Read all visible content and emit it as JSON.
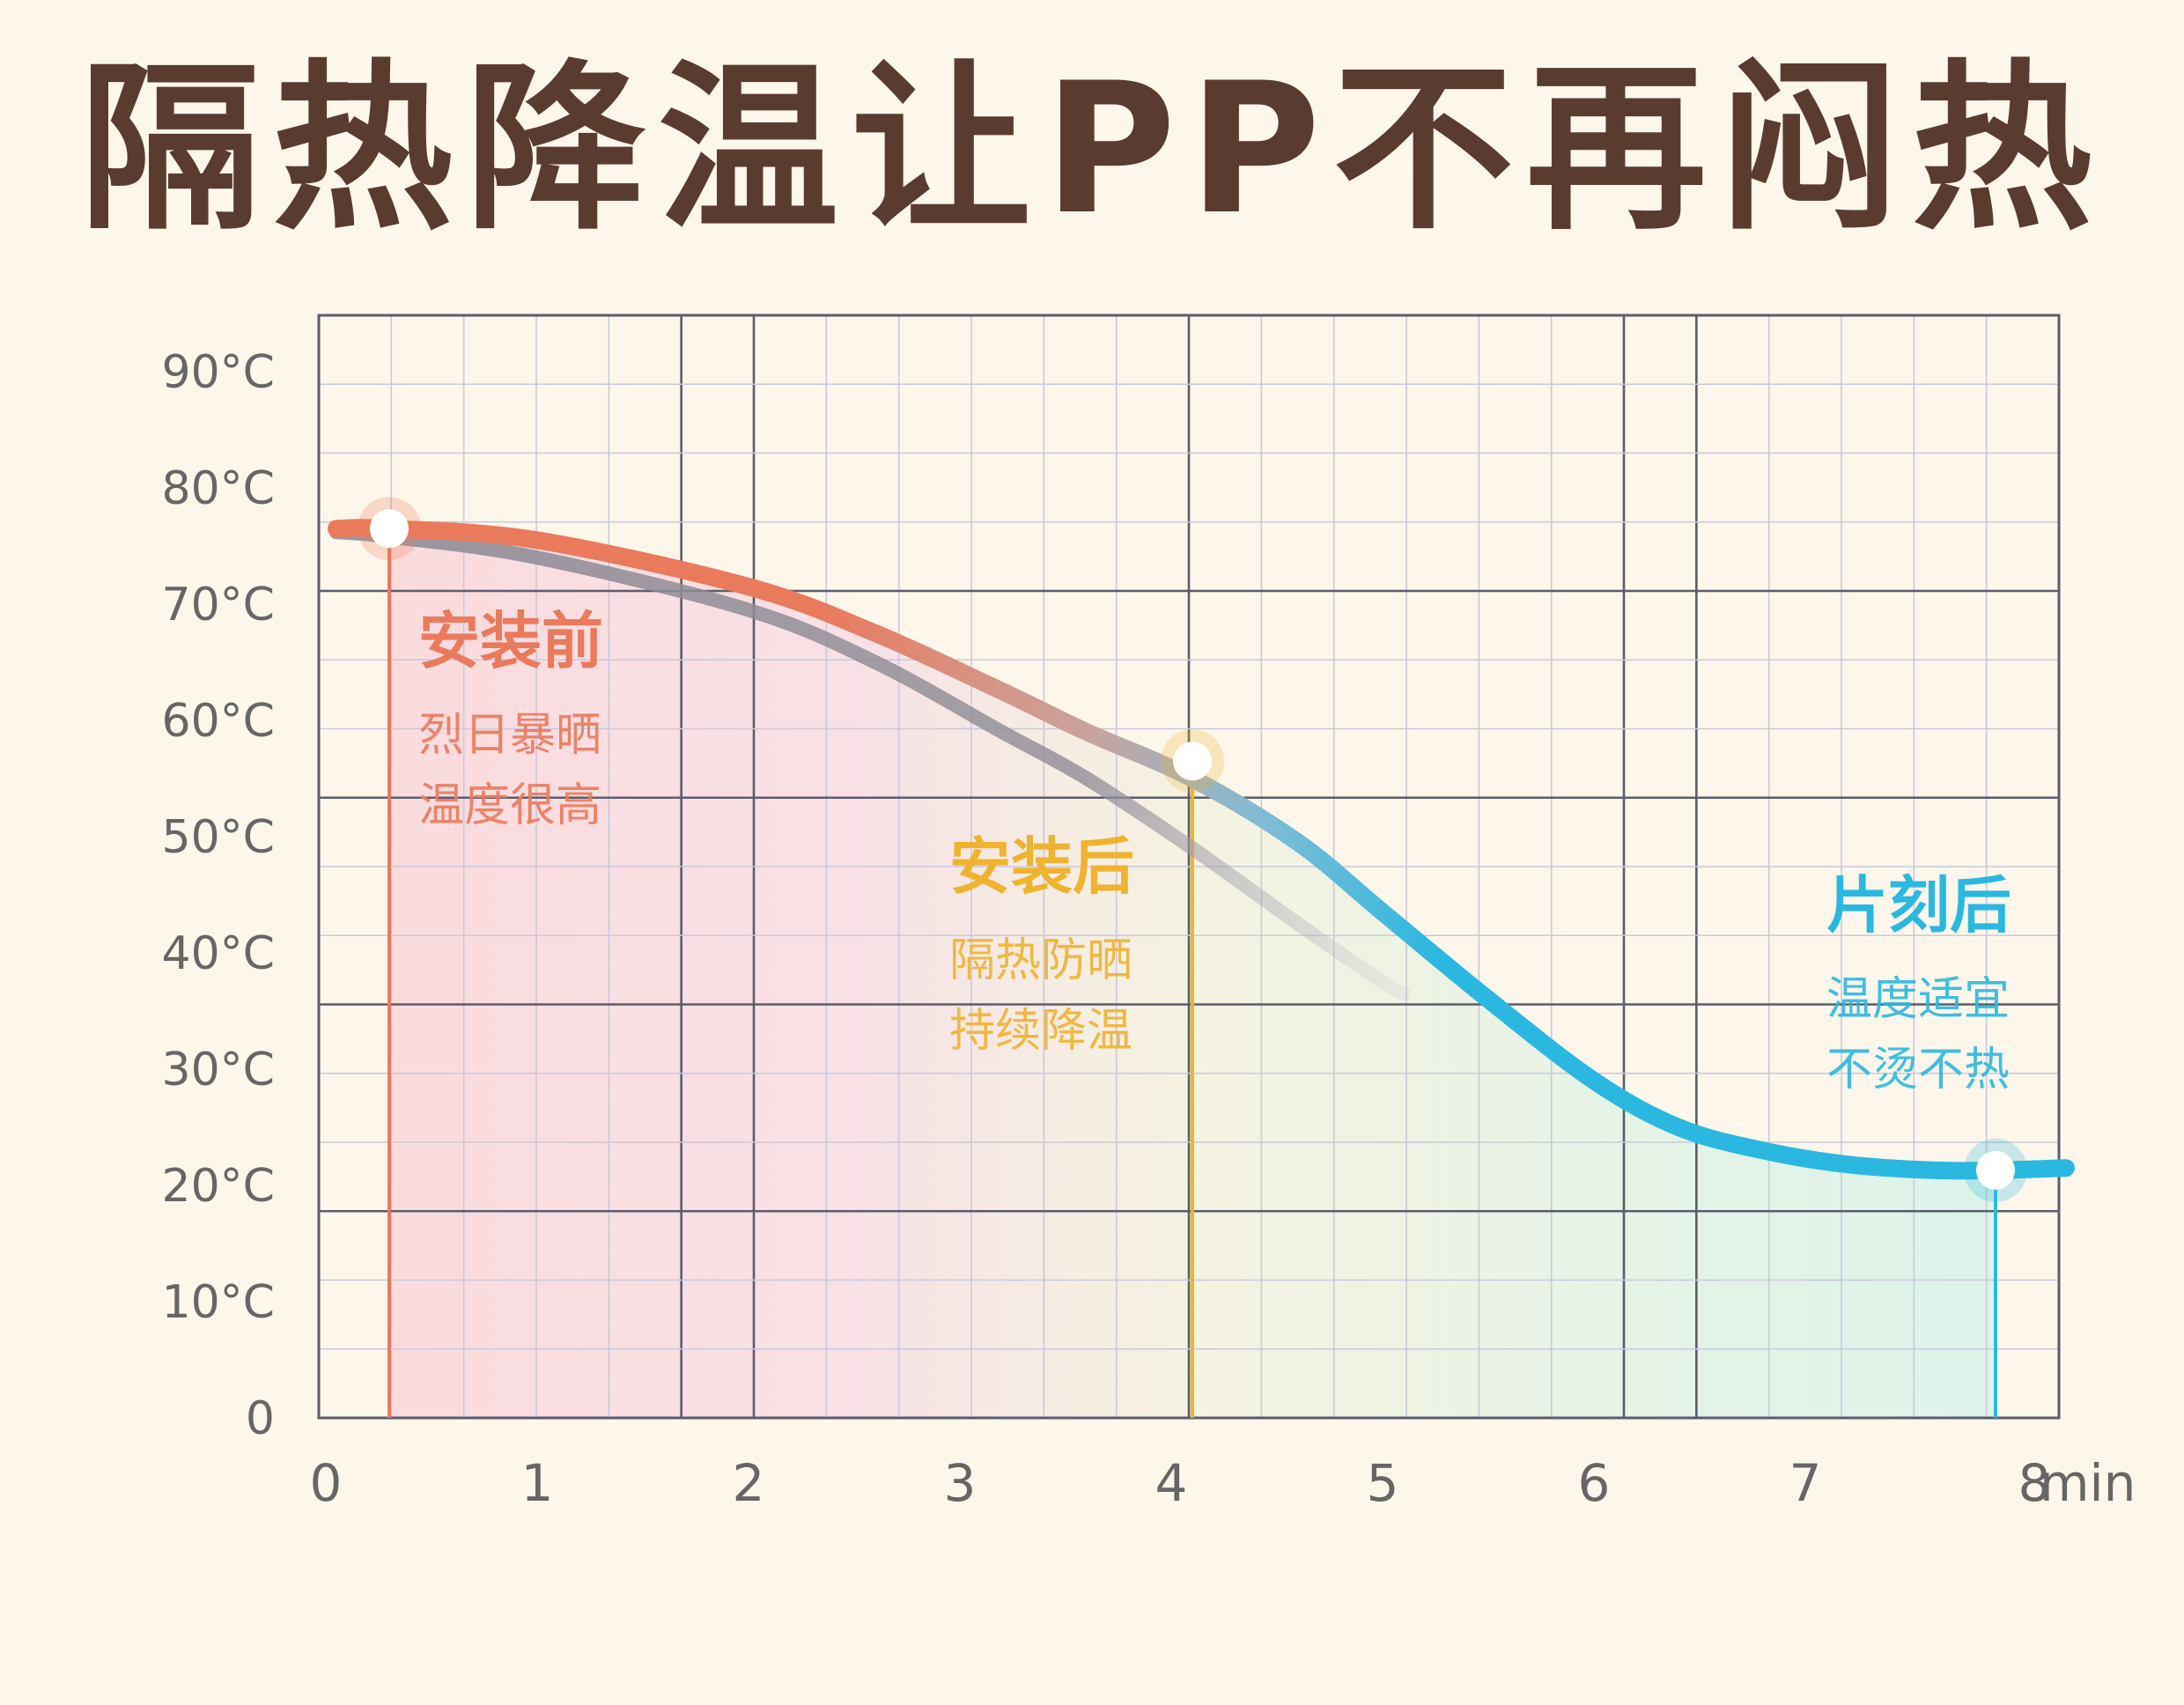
{
  "title": "隔热降温让PP不再闷热",
  "colors": {
    "background": "#fdf6ea",
    "title": "#5a3b30",
    "grid_minor": "#c9c9dd",
    "grid_major": "#5c5c6c",
    "axis_text": "#666666",
    "before": "#ea7a5c",
    "after": "#f0b330",
    "later": "#2bb8e0",
    "curve_gray": "#908c96"
  },
  "chart_data": {
    "type": "line",
    "title": "",
    "xlabel": "",
    "ylabel": "",
    "x_unit": "min",
    "xlim": [
      0,
      8
    ],
    "ylim": [
      0,
      95
    ],
    "x_ticks": [
      0,
      1,
      2,
      3,
      4,
      5,
      6,
      7,
      8
    ],
    "y_ticks": [
      0,
      10,
      20,
      30,
      40,
      50,
      60,
      70,
      80,
      90
    ],
    "x_tick_labels": [
      "0",
      "1",
      "2",
      "3",
      "4",
      "5",
      "6",
      "7",
      "8"
    ],
    "y_tick_labels": [
      "0",
      "10°C",
      "20°C",
      "30°C",
      "40°C",
      "50°C",
      "60°C",
      "70°C",
      "80°C",
      "90°C"
    ],
    "grid": true,
    "series": [
      {
        "name": "",
        "color": "gradient",
        "x": [
          0.05,
          0.3,
          1.0,
          2.0,
          2.6,
          3.2,
          3.6,
          4.1,
          4.6,
          5.0,
          5.5,
          6.0,
          6.4,
          6.8,
          7.2,
          7.6,
          7.9,
          8.3
        ],
        "y": [
          76.5,
          76.5,
          75.5,
          71.5,
          67.5,
          62.5,
          59.0,
          55.0,
          49.5,
          43.5,
          36.0,
          29.0,
          25.0,
          23.0,
          21.8,
          21.3,
          21.3,
          21.5
        ]
      },
      {
        "name": "",
        "color": "#908c96",
        "x": [
          0.05,
          0.3,
          1.0,
          2.0,
          2.6,
          3.2,
          3.6,
          4.1,
          4.6,
          5.0,
          5.1
        ],
        "y": [
          76.2,
          75.8,
          74.0,
          69.5,
          65.0,
          59.0,
          55.0,
          49.0,
          42.5,
          37.5,
          36.5
        ]
      }
    ],
    "markers": [
      {
        "x": 0.3,
        "y": 76.5,
        "color": "#ea7a5c",
        "label": "安装前",
        "lines": [
          "烈日暴晒",
          "温度很高"
        ]
      },
      {
        "x": 4.1,
        "y": 56.5,
        "color": "#f0b330",
        "label": "安装后",
        "lines": [
          "隔热防晒",
          "持续降温"
        ]
      },
      {
        "x": 7.9,
        "y": 21.3,
        "color": "#2bb8e0",
        "label": "片刻后",
        "lines": [
          "温度适宜",
          "不烫不热"
        ]
      }
    ]
  }
}
